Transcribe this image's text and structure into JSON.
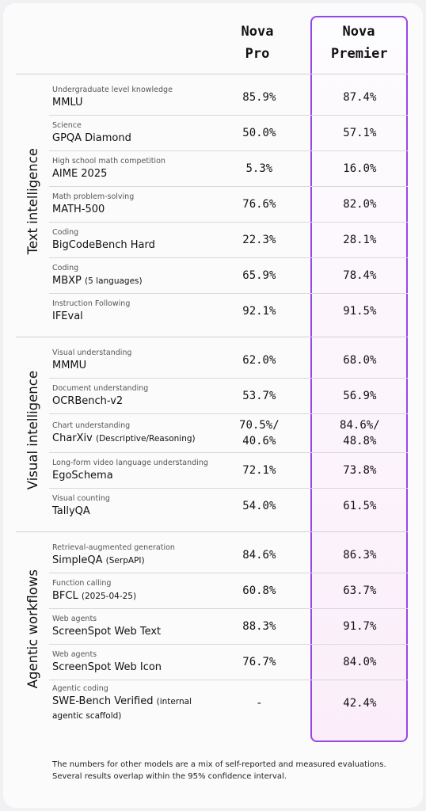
{
  "header": {
    "columns": [
      "Nova Pro",
      "Nova Premier"
    ]
  },
  "sections": [
    {
      "title": "Text intelligence",
      "rows": [
        {
          "category": "Undergraduate level knowledge",
          "benchmark": "MMLU",
          "pro": "85.9%",
          "premier": "87.4%"
        },
        {
          "category": "Science",
          "benchmark": "GPQA Diamond",
          "pro": "50.0%",
          "premier": "57.1%"
        },
        {
          "category": "High school math competition",
          "benchmark": "AIME 2025",
          "pro": "5.3%",
          "premier": "16.0%"
        },
        {
          "category": "Math problem-solving",
          "benchmark": "MATH-500",
          "pro": "76.6%",
          "premier": "82.0%"
        },
        {
          "category": "Coding",
          "benchmark": "BigCodeBench Hard",
          "pro": "22.3%",
          "premier": "28.1%"
        },
        {
          "category": "Coding",
          "benchmark": "MBXP",
          "note": "(5 languages)",
          "pro": "65.9%",
          "premier": "78.4%"
        },
        {
          "category": "Instruction Following",
          "benchmark": "IFEval",
          "pro": "92.1%",
          "premier": "91.5%"
        }
      ]
    },
    {
      "title": "Visual intelligence",
      "rows": [
        {
          "category": "Visual understanding",
          "benchmark": "MMMU",
          "pro": "62.0%",
          "premier": "68.0%"
        },
        {
          "category": "Document understanding",
          "benchmark": "OCRBench-v2",
          "pro": "53.7%",
          "premier": "56.9%"
        },
        {
          "category": "Chart understanding",
          "benchmark": "CharXiv",
          "note": "(Descriptive/Reasoning)",
          "pro": "70.5%/40.6%",
          "premier": "84.6%/48.8%"
        },
        {
          "category": "Long-form video language understanding",
          "benchmark": "EgoSchema",
          "pro": "72.1%",
          "premier": "73.8%"
        },
        {
          "category": "Visual counting",
          "benchmark": "TallyQA",
          "pro": "54.0%",
          "premier": "61.5%"
        }
      ]
    },
    {
      "title": "Agentic workflows",
      "rows": [
        {
          "category": "Retrieval-augmented generation",
          "benchmark": "SimpleQA",
          "note": "(SerpAPI)",
          "pro": "84.6%",
          "premier": "86.3%"
        },
        {
          "category": "Function calling",
          "benchmark": "BFCL",
          "note": "(2025-04-25)",
          "pro": "60.8%",
          "premier": "63.7%"
        },
        {
          "category": "Web agents",
          "benchmark": "ScreenSpot Web Text",
          "pro": "88.3%",
          "premier": "91.7%"
        },
        {
          "category": "Web agents",
          "benchmark": "ScreenSpot Web Icon",
          "pro": "76.7%",
          "premier": "84.0%"
        },
        {
          "category": "Agentic coding",
          "benchmark": "SWE-Bench Verified",
          "note": "(internal agentic scaffold)",
          "pro": "-",
          "premier": "42.4%"
        }
      ]
    }
  ],
  "footnote": "The numbers for other models are a mix of self-reported and measured evaluations. Several results overlap within the 95% confidence interval."
}
